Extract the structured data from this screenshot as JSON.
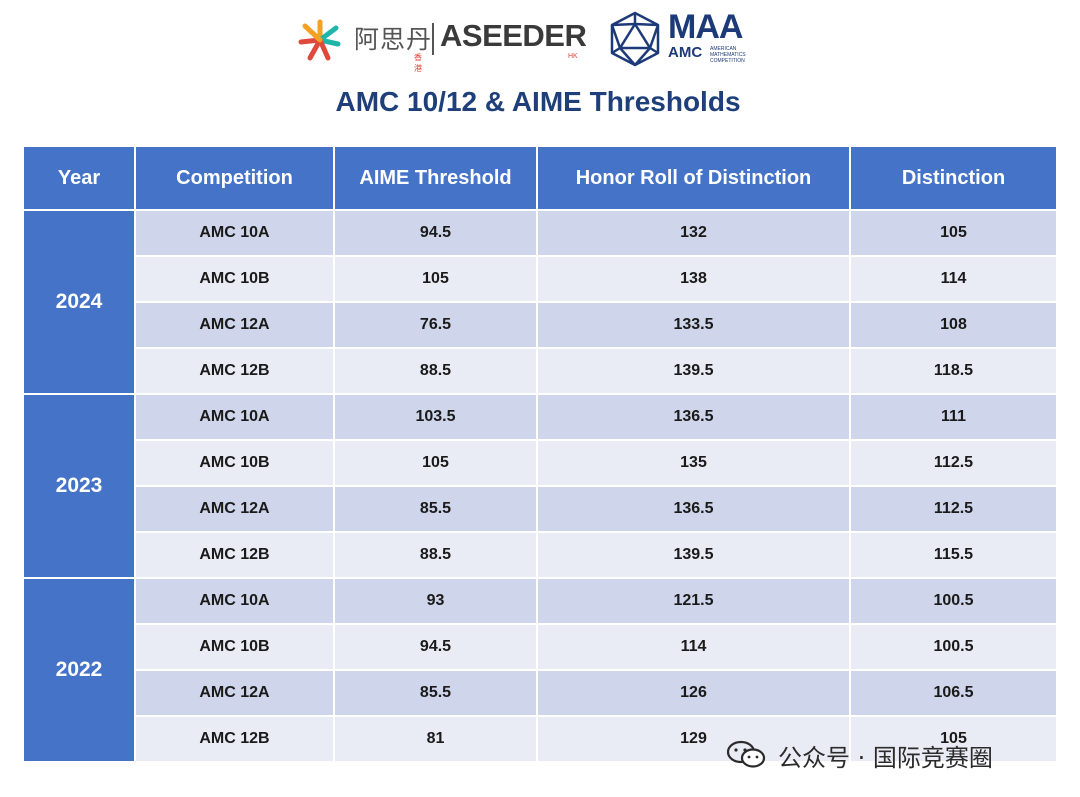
{
  "logos": {
    "aseeder_cn": "阿思丹",
    "aseeder_cn_sub": "香港",
    "aseeder_brand": "ASEEDER",
    "aseeder_brand_sub": "HK",
    "maa_name": "MAA",
    "amc_name": "AMC",
    "amc_subtitle": "AMERICAN MATHEMATICS COMPETITION",
    "colors": {
      "brand_red": "#e0483c",
      "brand_orange": "#f4a023",
      "brand_teal": "#1fb5a8",
      "maa_blue": "#1d3a78"
    }
  },
  "title": "AMC 10/12 & AIME Thresholds",
  "table": {
    "headers": [
      "Year",
      "Competition",
      "AIME Threshold",
      "Honor Roll of Distinction",
      "Distinction"
    ],
    "groups": [
      {
        "year": "2024",
        "rows": [
          [
            "AMC 10A",
            "94.5",
            "132",
            "105"
          ],
          [
            "AMC 10B",
            "105",
            "138",
            "114"
          ],
          [
            "AMC 12A",
            "76.5",
            "133.5",
            "108"
          ],
          [
            "AMC 12B",
            "88.5",
            "139.5",
            "118.5"
          ]
        ]
      },
      {
        "year": "2023",
        "rows": [
          [
            "AMC 10A",
            "103.5",
            "136.5",
            "111"
          ],
          [
            "AMC 10B",
            "105",
            "135",
            "112.5"
          ],
          [
            "AMC 12A",
            "85.5",
            "136.5",
            "112.5"
          ],
          [
            "AMC 12B",
            "88.5",
            "139.5",
            "115.5"
          ]
        ]
      },
      {
        "year": "2022",
        "rows": [
          [
            "AMC 10A",
            "93",
            "121.5",
            "100.5"
          ],
          [
            "AMC 10B",
            "94.5",
            "114",
            "100.5"
          ],
          [
            "AMC 12A",
            "85.5",
            "126",
            "106.5"
          ],
          [
            "AMC 12B",
            "81",
            "129",
            "105"
          ]
        ]
      }
    ],
    "colors": {
      "header_bg": "#4573c8",
      "row_dark": "#cfd5ea",
      "row_light": "#e9ecf5"
    }
  },
  "watermark": {
    "text": "公众号 · 国际竞赛圈",
    "icon": "wechat-icon"
  }
}
